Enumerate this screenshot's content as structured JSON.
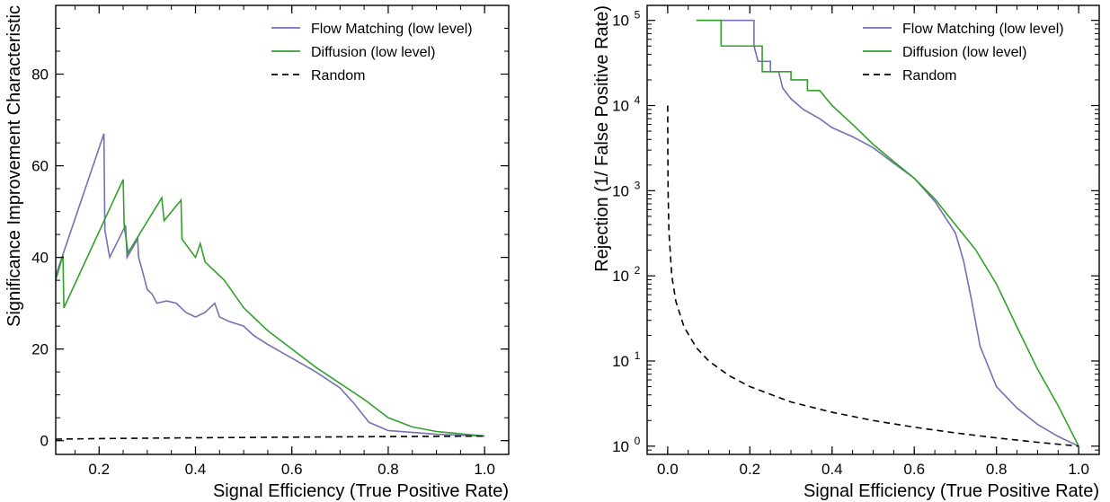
{
  "chart_data": [
    {
      "type": "line",
      "xlabel": "Signal Efficiency (True Positive Rate)",
      "ylabel": "Significance Improvement Characteristic",
      "xlim": [
        0.11,
        1.05
      ],
      "ylim": [
        -3,
        95
      ],
      "x_ticks": [
        "0.2",
        "0.4",
        "0.6",
        "0.8",
        "1.0"
      ],
      "y_ticks": [
        "0",
        "20",
        "40",
        "60",
        "80"
      ],
      "x_tick_values": [
        0.2,
        0.4,
        0.6,
        0.8,
        1.0
      ],
      "y_tick_values": [
        0,
        20,
        40,
        60,
        80
      ],
      "legend_position": "top-right",
      "grid": false,
      "series": [
        {
          "name": "Flow Matching (low level)",
          "color": "#7570b3",
          "dash": "",
          "points": [
            [
              0.11,
              36
            ],
            [
              0.21,
              67
            ],
            [
              0.212,
              46
            ],
            [
              0.222,
              40
            ],
            [
              0.255,
              47
            ],
            [
              0.258,
              40
            ],
            [
              0.28,
              44
            ],
            [
              0.282,
              40
            ],
            [
              0.29,
              37
            ],
            [
              0.3,
              33
            ],
            [
              0.31,
              32
            ],
            [
              0.32,
              30
            ],
            [
              0.34,
              30.5
            ],
            [
              0.36,
              30
            ],
            [
              0.37,
              29
            ],
            [
              0.38,
              28
            ],
            [
              0.4,
              27
            ],
            [
              0.42,
              28
            ],
            [
              0.44,
              30
            ],
            [
              0.45,
              27
            ],
            [
              0.47,
              26
            ],
            [
              0.5,
              25
            ],
            [
              0.52,
              23
            ],
            [
              0.55,
              21
            ],
            [
              0.6,
              18
            ],
            [
              0.65,
              15
            ],
            [
              0.7,
              11.5
            ],
            [
              0.73,
              8
            ],
            [
              0.76,
              4
            ],
            [
              0.8,
              2.2
            ],
            [
              0.9,
              1.4
            ],
            [
              1.0,
              1.0
            ]
          ]
        },
        {
          "name": "Diffusion (low level)",
          "color": "#33a02c",
          "dash": "",
          "points": [
            [
              0.11,
              35
            ],
            [
              0.125,
              40.5
            ],
            [
              0.127,
              29
            ],
            [
              0.25,
              57
            ],
            [
              0.252,
              47
            ],
            [
              0.26,
              41
            ],
            [
              0.33,
              53
            ],
            [
              0.335,
              48
            ],
            [
              0.37,
              52.5
            ],
            [
              0.372,
              44
            ],
            [
              0.4,
              40
            ],
            [
              0.41,
              43
            ],
            [
              0.42,
              39
            ],
            [
              0.44,
              37
            ],
            [
              0.46,
              35
            ],
            [
              0.48,
              32
            ],
            [
              0.5,
              29
            ],
            [
              0.55,
              24
            ],
            [
              0.6,
              20
            ],
            [
              0.65,
              16
            ],
            [
              0.7,
              12.5
            ],
            [
              0.75,
              9
            ],
            [
              0.8,
              5
            ],
            [
              0.85,
              3
            ],
            [
              0.9,
              2
            ],
            [
              1.0,
              1.0
            ]
          ]
        },
        {
          "name": "Random",
          "color": "#000000",
          "dash": "7,5",
          "points": [
            [
              0.11,
              0.33
            ],
            [
              0.2,
              0.45
            ],
            [
              0.4,
              0.63
            ],
            [
              0.6,
              0.77
            ],
            [
              0.8,
              0.89
            ],
            [
              1.0,
              1.0
            ]
          ]
        }
      ]
    },
    {
      "type": "line",
      "xlabel": "Signal Efficiency (True Positive Rate)",
      "ylabel": "Rejection (1/ False Positive Rate)",
      "xlim": [
        -0.05,
        1.05
      ],
      "ylim": [
        0.8,
        150000
      ],
      "yscale": "log",
      "x_ticks": [
        "0.0",
        "0.2",
        "0.4",
        "0.6",
        "0.8",
        "1.0"
      ],
      "y_ticks": [
        "10^0",
        "10^1",
        "10^2",
        "10^3",
        "10^4",
        "10^5"
      ],
      "x_tick_values": [
        0.0,
        0.2,
        0.4,
        0.6,
        0.8,
        1.0
      ],
      "y_tick_values": [
        1,
        10,
        100,
        1000,
        10000,
        100000
      ],
      "legend_position": "top-right",
      "grid": false,
      "series": [
        {
          "name": "Flow Matching (low level)",
          "color": "#7570b3",
          "dash": "",
          "points": [
            [
              0.07,
              100000
            ],
            [
              0.21,
              100000
            ],
            [
              0.21,
              50000
            ],
            [
              0.22,
              33000
            ],
            [
              0.25,
              33000
            ],
            [
              0.25,
              25000
            ],
            [
              0.27,
              25000
            ],
            [
              0.28,
              16000
            ],
            [
              0.3,
              12000
            ],
            [
              0.33,
              9000
            ],
            [
              0.37,
              7000
            ],
            [
              0.4,
              5500
            ],
            [
              0.45,
              4300
            ],
            [
              0.5,
              3200
            ],
            [
              0.55,
              2100
            ],
            [
              0.6,
              1400
            ],
            [
              0.65,
              750
            ],
            [
              0.7,
              320
            ],
            [
              0.72,
              150
            ],
            [
              0.74,
              50
            ],
            [
              0.76,
              15
            ],
            [
              0.8,
              5
            ],
            [
              0.85,
              2.8
            ],
            [
              0.9,
              1.8
            ],
            [
              0.95,
              1.3
            ],
            [
              1.0,
              1.0
            ]
          ]
        },
        {
          "name": "Diffusion (low level)",
          "color": "#33a02c",
          "dash": "",
          "points": [
            [
              0.07,
              100000
            ],
            [
              0.13,
              100000
            ],
            [
              0.13,
              50000
            ],
            [
              0.23,
              50000
            ],
            [
              0.23,
              25000
            ],
            [
              0.3,
              25000
            ],
            [
              0.3,
              20000
            ],
            [
              0.34,
              20000
            ],
            [
              0.34,
              15000
            ],
            [
              0.37,
              15000
            ],
            [
              0.4,
              10000
            ],
            [
              0.45,
              6000
            ],
            [
              0.5,
              3500
            ],
            [
              0.55,
              2200
            ],
            [
              0.6,
              1400
            ],
            [
              0.65,
              800
            ],
            [
              0.7,
              400
            ],
            [
              0.75,
              200
            ],
            [
              0.8,
              80
            ],
            [
              0.85,
              25
            ],
            [
              0.9,
              8
            ],
            [
              0.95,
              3
            ],
            [
              1.0,
              1.0
            ]
          ]
        },
        {
          "name": "Random",
          "color": "#000000",
          "dash": "7,5",
          "points": [
            [
              0.0001,
              10000
            ],
            [
              0.0003,
              3333
            ],
            [
              0.001,
              1000
            ],
            [
              0.003,
              333
            ],
            [
              0.01,
              100
            ],
            [
              0.02,
              50
            ],
            [
              0.04,
              25
            ],
            [
              0.07,
              14.3
            ],
            [
              0.1,
              10
            ],
            [
              0.15,
              6.7
            ],
            [
              0.2,
              5
            ],
            [
              0.3,
              3.3
            ],
            [
              0.4,
              2.5
            ],
            [
              0.5,
              2
            ],
            [
              0.6,
              1.67
            ],
            [
              0.7,
              1.43
            ],
            [
              0.8,
              1.25
            ],
            [
              0.9,
              1.11
            ],
            [
              1.0,
              1.0
            ]
          ]
        }
      ]
    }
  ]
}
